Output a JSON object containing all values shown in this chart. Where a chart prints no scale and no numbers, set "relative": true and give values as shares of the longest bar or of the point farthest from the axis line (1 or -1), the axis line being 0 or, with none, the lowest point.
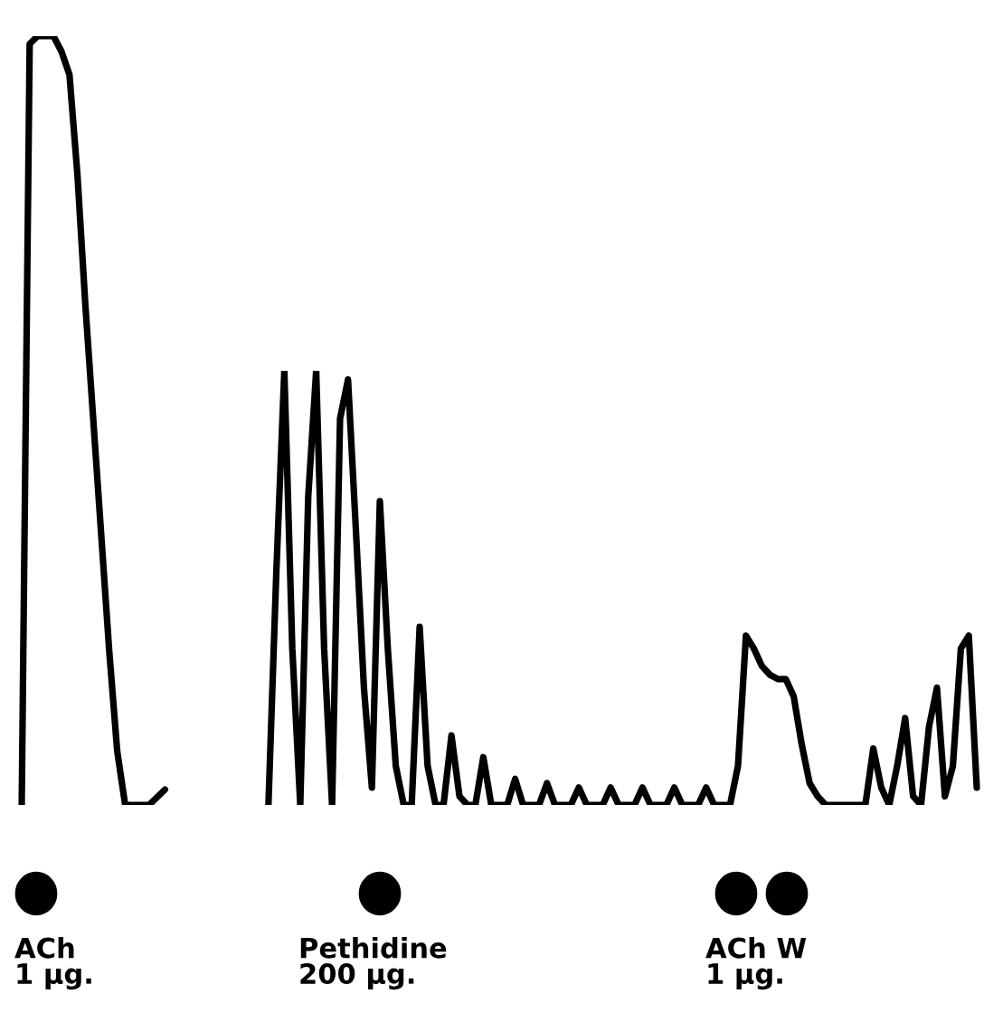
{
  "chart_data": [
    {
      "type": "line",
      "relative": true,
      "color": "#000000",
      "line_style": "solid",
      "marker": "none",
      "categories": [
        null,
        null,
        null,
        null,
        null,
        null,
        null,
        null,
        null,
        null,
        null,
        null,
        null,
        null,
        null,
        null,
        null,
        null,
        null
      ],
      "values": [
        0,
        0.99,
        1,
        1,
        1,
        0.98,
        0.95,
        0.82,
        0.65,
        0.5,
        0.35,
        0.2,
        0.07,
        0,
        0,
        0,
        0,
        0.01,
        0.02
      ],
      "annotations": [
        "ACh\n1 µg."
      ]
    },
    {
      "type": "line",
      "relative": true,
      "color": "#000000",
      "line_style": "solid",
      "marker": "none",
      "categories": [
        null,
        null,
        null,
        null,
        null,
        null,
        null,
        null,
        null,
        null,
        null,
        null,
        null,
        null,
        null,
        null,
        null,
        null,
        null,
        null,
        null,
        null,
        null,
        null,
        null,
        null,
        null,
        null,
        null,
        null,
        null,
        null,
        null,
        null,
        null,
        null,
        null,
        null,
        null,
        null,
        null,
        null,
        null,
        null,
        null,
        null,
        null,
        null,
        null,
        null,
        null,
        null,
        null,
        null,
        null,
        null,
        null,
        null,
        null,
        null,
        null,
        null,
        null,
        null,
        null,
        null,
        null,
        null,
        null,
        null,
        null,
        null,
        null,
        null,
        null,
        null,
        null,
        null,
        null,
        null,
        null,
        null,
        null,
        null,
        null,
        null,
        null,
        null,
        null,
        null
      ],
      "values": [
        0,
        0.54,
        1,
        0.36,
        0,
        0.71,
        1,
        0.36,
        0,
        0.89,
        0.98,
        0.63,
        0.27,
        0.04,
        0.7,
        0.36,
        0.09,
        0,
        0,
        0.41,
        0.09,
        0,
        0,
        0.16,
        0.02,
        0,
        0,
        0.11,
        0,
        0,
        0,
        0.06,
        0,
        0,
        0,
        0.05,
        0,
        0,
        0,
        0.04,
        0,
        0,
        0,
        0.04,
        0,
        0,
        0,
        0.04,
        0,
        0,
        0,
        0.04,
        0,
        0,
        0,
        0.04,
        0,
        0,
        0,
        0.09,
        0.39,
        0.36,
        0.32,
        0.3,
        0.29,
        0.29,
        0.25,
        0.14,
        0.05,
        0.02,
        0,
        0,
        0,
        0,
        0,
        0,
        0.13,
        0.04,
        0,
        0.09,
        0.2,
        0.02,
        0,
        0.18,
        0.27,
        0.02,
        0.09,
        0.36,
        0.39,
        0.04
      ],
      "annotations": [
        "Pethidine\n200 µg.",
        "ACh W\n1 µg."
      ]
    }
  ]
}
